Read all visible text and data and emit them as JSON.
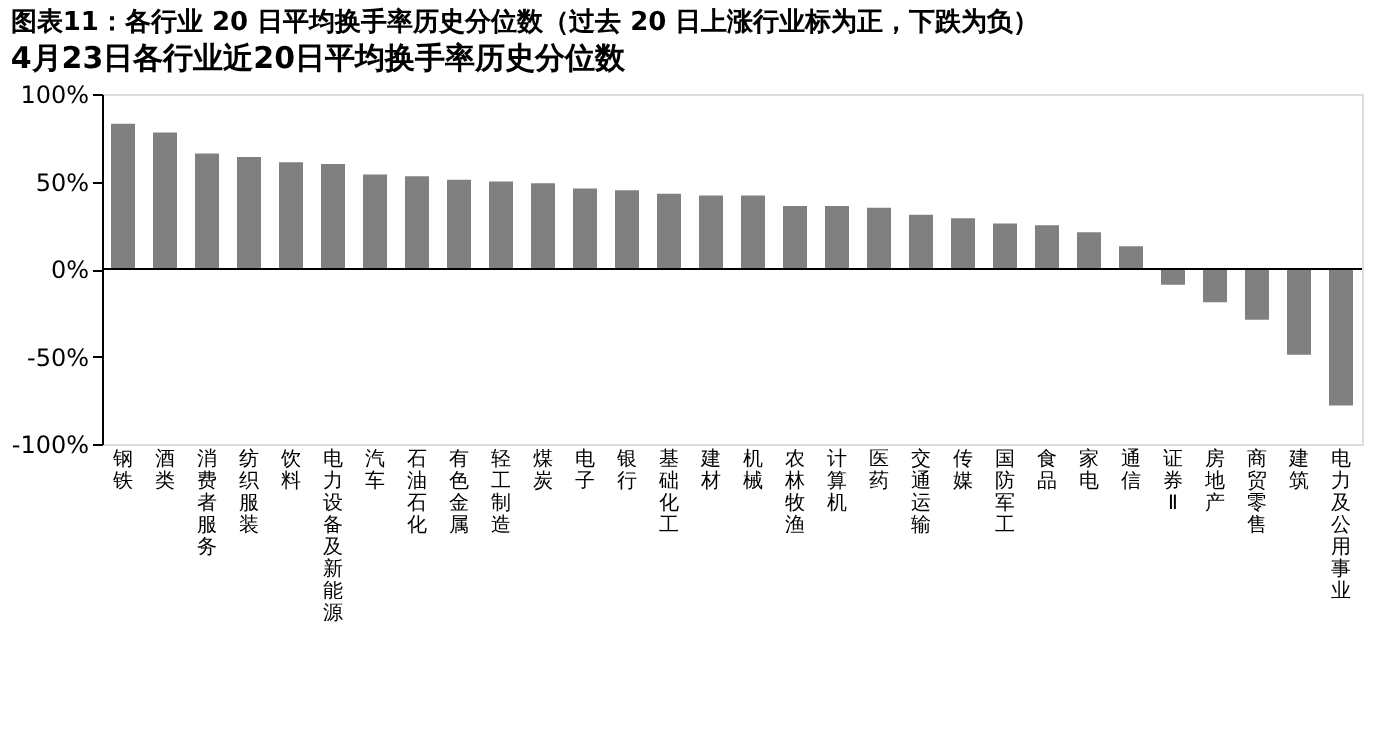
{
  "chart_data": {
    "type": "bar",
    "title": "图表11：各行业 20 日平均换手率历史分位数（过去 20 日上涨行业标为正，下跌为负）",
    "subtitle": "4月23日各行业近20日平均换手率历史分位数",
    "categories": [
      "钢铁",
      "酒类",
      "消费者服务",
      "纺织服装",
      "饮料",
      "电力设备及新能源",
      "汽车",
      "石油石化",
      "有色金属",
      "轻工制造",
      "煤炭",
      "电子",
      "银行",
      "基础化工",
      "建材",
      "机械",
      "农林牧渔",
      "计算机",
      "医药",
      "交通运输",
      "传媒",
      "国防军工",
      "食品",
      "家电",
      "通信",
      "证券Ⅱ",
      "房地产",
      "商贸零售",
      "建筑",
      "电力及公用事业"
    ],
    "values": [
      83,
      78,
      66,
      64,
      61,
      60,
      54,
      53,
      51,
      50,
      49,
      46,
      45,
      43,
      42,
      42,
      36,
      36,
      35,
      31,
      29,
      26,
      25,
      21,
      13,
      -9,
      -19,
      -29,
      -49,
      -78
    ],
    "color": "#808080",
    "ylim": [
      -100,
      100
    ],
    "yticks": [
      {
        "value": -100,
        "label": "-100%"
      },
      {
        "value": -50,
        "label": "-50%"
      },
      {
        "value": 0,
        "label": "0%"
      },
      {
        "value": 50,
        "label": "50%"
      },
      {
        "value": 100,
        "label": "100%"
      }
    ]
  }
}
